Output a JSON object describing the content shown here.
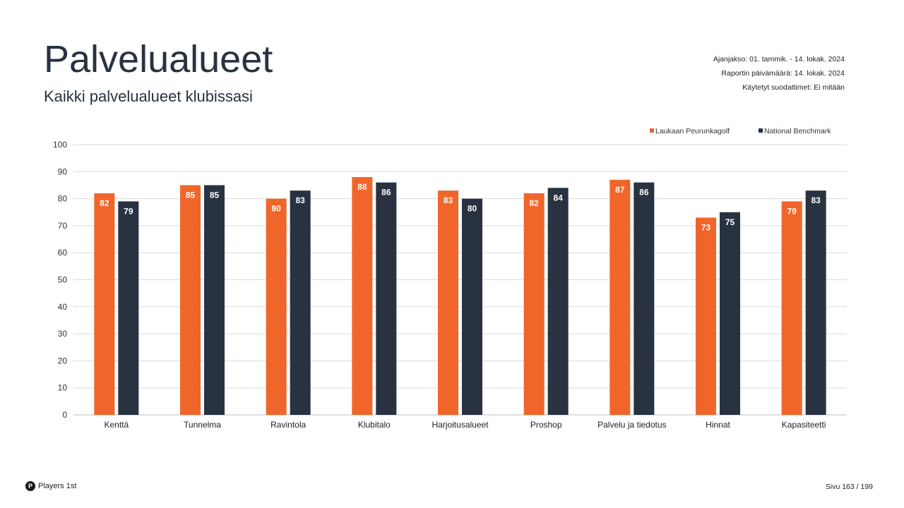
{
  "header": {
    "title": "Palvelualueet",
    "subtitle": "Kaikki palvelualueet klubissasi"
  },
  "meta": {
    "period": "Ajanjakso: 01. tammik. - 14. lokak. 2024",
    "report_date": "Raportin päivämäärä: 14. lokak. 2024",
    "filters": "Käytetyt suodattimet: Ei mitään"
  },
  "footer": {
    "brand": "Players 1st",
    "logo_letter": "P",
    "page": "Sivu 163 / 199"
  },
  "chart_data": {
    "type": "bar",
    "categories": [
      "Kenttä",
      "Tunnelma",
      "Ravintola",
      "Klubitalo",
      "Harjoitusalueet",
      "Proshop",
      "Palvelu ja tiedotus",
      "Hinnat",
      "Kapasiteetti"
    ],
    "series": [
      {
        "name": "Laukaan Peurunkagolf",
        "color": "#F0662A",
        "values": [
          82,
          85,
          80,
          88,
          83,
          82,
          87,
          73,
          79
        ]
      },
      {
        "name": "National Benchmark",
        "color": "#283241",
        "values": [
          79,
          85,
          83,
          86,
          80,
          84,
          86,
          75,
          83
        ]
      }
    ],
    "ylim": [
      0,
      100
    ],
    "yticks": [
      0,
      10,
      20,
      30,
      40,
      50,
      60,
      70,
      80,
      90,
      100
    ],
    "grid": true,
    "legend": "top-right",
    "data_labels": true
  }
}
